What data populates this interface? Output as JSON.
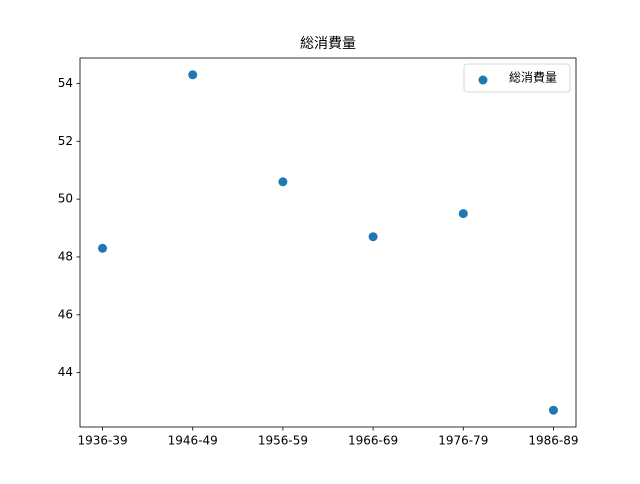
{
  "chart_data": {
    "type": "scatter",
    "title": "総消費量",
    "categories": [
      "1936-39",
      "1946-49",
      "1956-59",
      "1966-69",
      "1976-79",
      "1986-89"
    ],
    "series": [
      {
        "name": "総消費量",
        "color": "#1f77b4",
        "values": [
          48.3,
          54.3,
          50.6,
          48.7,
          49.5,
          42.7
        ]
      }
    ],
    "ylim": [
      42.12,
      54.88
    ],
    "yticks": [
      44,
      46,
      48,
      50,
      52,
      54
    ],
    "legend": "upper right",
    "grid": false
  }
}
